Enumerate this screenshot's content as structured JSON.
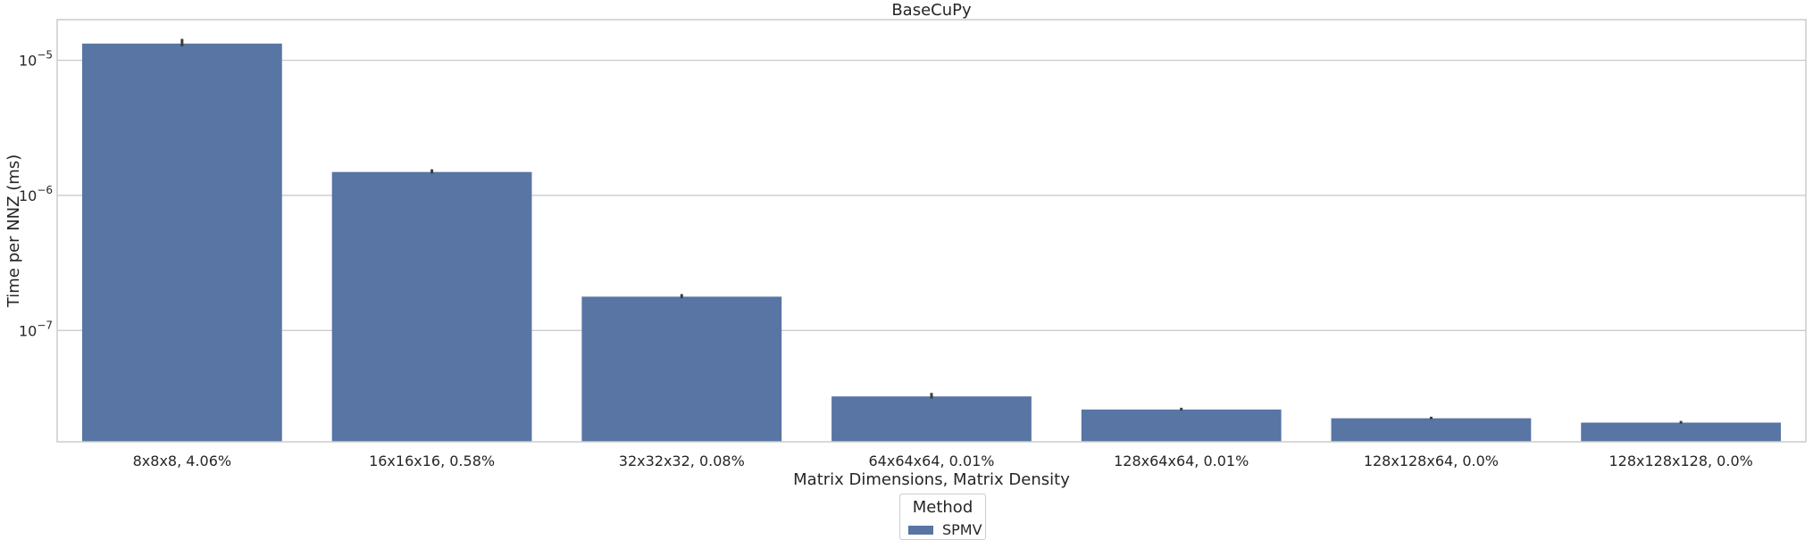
{
  "chart_data": {
    "type": "bar",
    "title": "BaseCuPy",
    "xlabel": "Matrix Dimensions, Matrix Density",
    "ylabel": "Time per NNZ (ms)",
    "yscale": "log",
    "ylim": [
      1.5e-08,
      2e-05
    ],
    "yticks": [
      {
        "value": 1e-07,
        "base": "10",
        "exp": "−7"
      },
      {
        "value": 1e-06,
        "base": "10",
        "exp": "−6"
      },
      {
        "value": 1e-05,
        "base": "10",
        "exp": "−5"
      }
    ],
    "categories": [
      "8x8x8, 4.06%",
      "16x16x16, 0.58%",
      "32x32x32, 0.08%",
      "64x64x64, 0.01%",
      "128x64x64, 0.01%",
      "128x128x64, 0.0%",
      "128x128x128, 0.0%"
    ],
    "series": [
      {
        "name": "SPMV",
        "color": "#5875a4",
        "values": [
          1.33e-05,
          1.49e-06,
          1.78e-07,
          3.25e-08,
          2.6e-08,
          2.24e-08,
          2.08e-08
        ],
        "error_upper": [
          1.44e-05,
          1.56e-06,
          1.86e-07,
          3.45e-08,
          2.68e-08,
          2.3e-08,
          2.14e-08
        ]
      }
    ],
    "grid": "y",
    "legend": {
      "title": "Method",
      "position": "bottom-center"
    }
  }
}
